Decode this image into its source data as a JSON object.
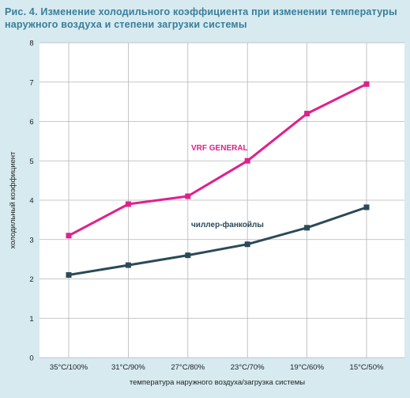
{
  "figure": {
    "title_line1": "Рис. 4. Изменение холодильного коэффициента при изменении температуры",
    "title_line2": "наружного воздуха и степени загрузки системы"
  },
  "colors": {
    "background": "#d6eaf0",
    "plot_area": "#ffffff",
    "grid": "#b5b5b5",
    "title": "#3a7e9a",
    "vrf": "#e0208c",
    "chiller": "#2a4a58"
  },
  "chart_data": {
    "type": "line",
    "categories": [
      "35°C/100%",
      "31°C/90%",
      "27°C/80%",
      "23°C/70%",
      "19°C/60%",
      "15°C/50%"
    ],
    "xlabel": "температура наружного воздуха/загрузка системы",
    "ylabel": "холодильный коэффициент",
    "ylim": [
      0,
      8
    ],
    "yticks": [
      0,
      1,
      2,
      3,
      4,
      5,
      6,
      7,
      8
    ],
    "grid": true,
    "series": [
      {
        "name": "VRF GENERAL",
        "values": [
          3.1,
          3.9,
          4.1,
          5.0,
          6.2,
          6.95
        ],
        "color": "#e0208c",
        "marker": "square"
      },
      {
        "name": "чиллер-фанкойлы",
        "values": [
          2.1,
          2.35,
          2.6,
          2.88,
          3.3,
          3.82
        ],
        "color": "#2a4a58",
        "marker": "square"
      }
    ]
  }
}
